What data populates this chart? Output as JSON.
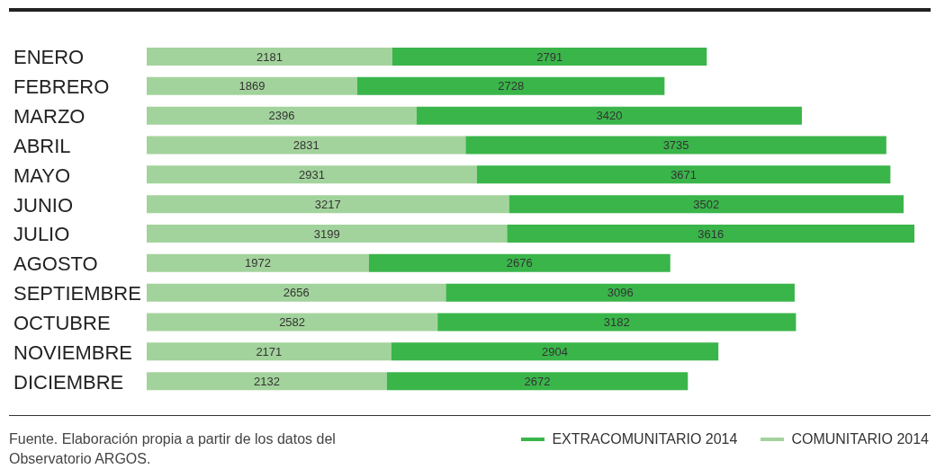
{
  "chart_data": {
    "type": "bar",
    "orientation": "horizontal",
    "stacked": true,
    "data_labels": true,
    "legend": "bottom right",
    "categories": [
      "ENERO",
      "FEBRERO",
      "MARZO",
      "ABRIL",
      "MAYO",
      "JUNIO",
      "JULIO",
      "AGOSTO",
      "SEPTIEMBRE",
      "OCTUBRE",
      "NOVIEMBRE",
      "DICIEMBRE"
    ],
    "series": [
      {
        "name": "COMUNITARIO 2014",
        "color": "#a3d39c",
        "values": [
          2181,
          1869,
          2396,
          2831,
          2931,
          3217,
          3199,
          1972,
          2656,
          2582,
          2171,
          2132
        ]
      },
      {
        "name": "EXTRACOMUNITARIO 2014",
        "color": "#3ab54a",
        "values": [
          2791,
          2728,
          3420,
          3735,
          3671,
          3502,
          3616,
          2676,
          3096,
          3182,
          2904,
          2672
        ]
      }
    ],
    "annotations": [
      "Fuente. Elaboración propia a partir de los datos del Observatorio ARGOS."
    ]
  }
}
